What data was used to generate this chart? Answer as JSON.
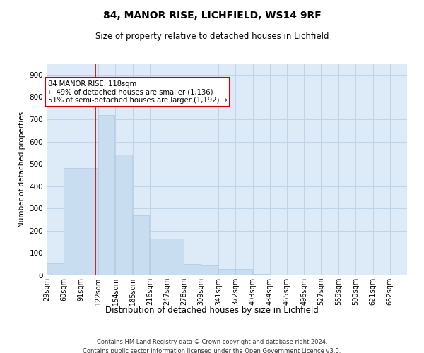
{
  "title": "84, MANOR RISE, LICHFIELD, WS14 9RF",
  "subtitle": "Size of property relative to detached houses in Lichfield",
  "xlabel": "Distribution of detached houses by size in Lichfield",
  "ylabel": "Number of detached properties",
  "footer_line1": "Contains HM Land Registry data © Crown copyright and database right 2024.",
  "footer_line2": "Contains public sector information licensed under the Open Government Licence v3.0.",
  "annotation_title": "84 MANOR RISE: 118sqm",
  "annotation_line2": "← 49% of detached houses are smaller (1,136)",
  "annotation_line3": "51% of semi-detached houses are larger (1,192) →",
  "property_size_sqm": 118,
  "bin_starts": [
    29,
    60,
    91,
    122,
    154,
    185,
    216,
    247,
    278,
    309,
    341,
    372,
    403,
    434,
    465,
    496,
    527,
    559,
    590,
    621,
    652
  ],
  "bar_heights": [
    55,
    480,
    480,
    720,
    540,
    270,
    165,
    165,
    50,
    45,
    30,
    30,
    5,
    0,
    0,
    0,
    0,
    0,
    0,
    0,
    0
  ],
  "tick_labels": [
    "29sqm",
    "60sqm",
    "91sqm",
    "122sqm",
    "154sqm",
    "185sqm",
    "216sqm",
    "247sqm",
    "278sqm",
    "309sqm",
    "341sqm",
    "372sqm",
    "403sqm",
    "434sqm",
    "465sqm",
    "496sqm",
    "527sqm",
    "559sqm",
    "590sqm",
    "621sqm",
    "652sqm"
  ],
  "bar_color": "#c9ddf0",
  "bar_edge_color": "#aec9e0",
  "vline_color": "#cc0000",
  "vline_x": 118,
  "annotation_box_color": "#cc0000",
  "annotation_bg_color": "#ffffff",
  "grid_color": "#c0d4e8",
  "background_color": "#ddeaf7",
  "ylim": [
    0,
    950
  ],
  "yticks": [
    0,
    100,
    200,
    300,
    400,
    500,
    600,
    700,
    800,
    900
  ],
  "bin_width": 31
}
